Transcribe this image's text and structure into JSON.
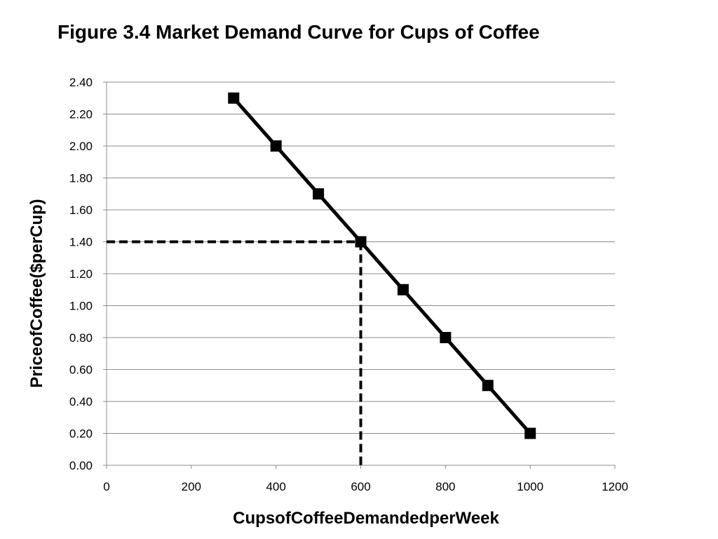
{
  "chart_data": {
    "type": "line",
    "title": "Figure 3.4  Market Demand Curve for Cups of Coffee",
    "xlabel": "Cups\u0002of\u0002Coffee\u0002Demanded\u0002per\u0002Week",
    "ylabel": "Price\u0002of\u0002Coffee\u0002($\u0002per\u0002Cup)",
    "xlim": [
      0,
      1200
    ],
    "ylim": [
      0,
      2.4
    ],
    "xticks": [
      "0",
      "200",
      "400",
      "600",
      "800",
      "1000",
      "1200"
    ],
    "yticks": [
      "0.00",
      "0.20",
      "0.40",
      "0.60",
      "0.80",
      "1.00",
      "1.20",
      "1.40",
      "1.60",
      "1.80",
      "2.00",
      "2.20",
      "2.40"
    ],
    "grid": true,
    "series": [
      {
        "x": [
          300,
          400,
          500,
          600,
          700,
          800,
          900,
          1000
        ],
        "y": [
          2.3,
          2.0,
          1.7,
          1.4,
          1.1,
          0.8,
          0.5,
          0.2
        ],
        "color": "#000000",
        "marker": "square"
      }
    ],
    "reference_point": {
      "x": 600,
      "y": 1.4,
      "style": "dashed"
    }
  }
}
